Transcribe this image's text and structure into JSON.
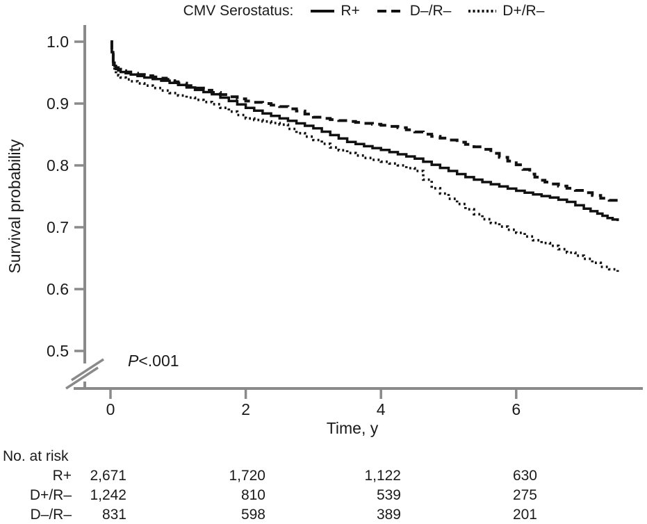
{
  "legend": {
    "title": "CMV Serostatus:",
    "items": [
      {
        "label": "R+",
        "style": "solid"
      },
      {
        "label": "D–/R–",
        "style": "dashed"
      },
      {
        "label": "D+/R–",
        "style": "dotted"
      }
    ]
  },
  "annotation": {
    "p_prefix": "P",
    "p_value": "<.001"
  },
  "chart_data": {
    "type": "line",
    "subtype": "kaplan-meier-step",
    "title": "CMV Serostatus:",
    "xlabel": "Time, y",
    "ylabel": "Survival probability",
    "xlim": [
      0,
      7.9
    ],
    "ylim": [
      0.5,
      1.0
    ],
    "y_axis_break_below": 0.5,
    "grid": false,
    "legend_position": "top",
    "p_value_annotation": "P<.001",
    "x_ticks": [
      0,
      2,
      4,
      6
    ],
    "y_ticks": [
      1.0,
      0.9,
      0.8,
      0.7,
      0.6,
      0.5
    ],
    "series": [
      {
        "name": "R+",
        "line_style": "solid",
        "points": [
          [
            0,
            1.0
          ],
          [
            0.04,
            0.966
          ],
          [
            0.08,
            0.956
          ],
          [
            0.15,
            0.951
          ],
          [
            0.3,
            0.947
          ],
          [
            0.5,
            0.942
          ],
          [
            0.75,
            0.937
          ],
          [
            1.0,
            0.93
          ],
          [
            1.25,
            0.922
          ],
          [
            1.5,
            0.915
          ],
          [
            1.75,
            0.904
          ],
          [
            2.0,
            0.893
          ],
          [
            2.25,
            0.884
          ],
          [
            2.5,
            0.876
          ],
          [
            2.75,
            0.868
          ],
          [
            3.0,
            0.86
          ],
          [
            3.25,
            0.849
          ],
          [
            3.5,
            0.838
          ],
          [
            3.75,
            0.831
          ],
          [
            4.0,
            0.825
          ],
          [
            4.25,
            0.818
          ],
          [
            4.5,
            0.811
          ],
          [
            4.75,
            0.801
          ],
          [
            5.0,
            0.791
          ],
          [
            5.25,
            0.781
          ],
          [
            5.5,
            0.773
          ],
          [
            5.75,
            0.766
          ],
          [
            6.0,
            0.759
          ],
          [
            6.25,
            0.753
          ],
          [
            6.5,
            0.748
          ],
          [
            6.75,
            0.741
          ],
          [
            7.0,
            0.73
          ],
          [
            7.2,
            0.722
          ],
          [
            7.35,
            0.715
          ],
          [
            7.5,
            0.71
          ]
        ]
      },
      {
        "name": "D–/R–",
        "line_style": "dashed",
        "points": [
          [
            0,
            1.0
          ],
          [
            0.04,
            0.968
          ],
          [
            0.08,
            0.958
          ],
          [
            0.15,
            0.953
          ],
          [
            0.3,
            0.949
          ],
          [
            0.5,
            0.945
          ],
          [
            0.75,
            0.941
          ],
          [
            0.9,
            0.937
          ],
          [
            1.0,
            0.933
          ],
          [
            1.25,
            0.925
          ],
          [
            1.5,
            0.918
          ],
          [
            1.75,
            0.911
          ],
          [
            2.0,
            0.904
          ],
          [
            2.25,
            0.9
          ],
          [
            2.5,
            0.895
          ],
          [
            2.75,
            0.888
          ],
          [
            3.0,
            0.878
          ],
          [
            3.25,
            0.874
          ],
          [
            3.5,
            0.871
          ],
          [
            3.75,
            0.868
          ],
          [
            4.0,
            0.865
          ],
          [
            4.25,
            0.861
          ],
          [
            4.5,
            0.854
          ],
          [
            4.75,
            0.847
          ],
          [
            5.0,
            0.841
          ],
          [
            5.25,
            0.834
          ],
          [
            5.5,
            0.826
          ],
          [
            5.75,
            0.813
          ],
          [
            6.0,
            0.801
          ],
          [
            6.2,
            0.786
          ],
          [
            6.35,
            0.776
          ],
          [
            6.5,
            0.77
          ],
          [
            6.75,
            0.763
          ],
          [
            7.0,
            0.756
          ],
          [
            7.25,
            0.747
          ],
          [
            7.5,
            0.74
          ]
        ]
      },
      {
        "name": "D+/R–",
        "line_style": "dotted",
        "points": [
          [
            0,
            1.0
          ],
          [
            0.04,
            0.96
          ],
          [
            0.08,
            0.949
          ],
          [
            0.15,
            0.942
          ],
          [
            0.3,
            0.936
          ],
          [
            0.5,
            0.929
          ],
          [
            0.75,
            0.921
          ],
          [
            1.0,
            0.913
          ],
          [
            1.25,
            0.906
          ],
          [
            1.5,
            0.899
          ],
          [
            1.75,
            0.887
          ],
          [
            2.0,
            0.876
          ],
          [
            2.25,
            0.871
          ],
          [
            2.5,
            0.866
          ],
          [
            2.75,
            0.852
          ],
          [
            3.0,
            0.841
          ],
          [
            3.25,
            0.829
          ],
          [
            3.5,
            0.82
          ],
          [
            3.75,
            0.812
          ],
          [
            4.0,
            0.806
          ],
          [
            4.25,
            0.8
          ],
          [
            4.5,
            0.791
          ],
          [
            4.75,
            0.763
          ],
          [
            5.0,
            0.746
          ],
          [
            5.25,
            0.729
          ],
          [
            5.5,
            0.713
          ],
          [
            5.75,
            0.701
          ],
          [
            6.0,
            0.691
          ],
          [
            6.25,
            0.679
          ],
          [
            6.5,
            0.67
          ],
          [
            6.75,
            0.659
          ],
          [
            7.0,
            0.649
          ],
          [
            7.25,
            0.636
          ],
          [
            7.5,
            0.628
          ]
        ]
      }
    ]
  },
  "risk_table": {
    "title": "No. at risk",
    "times": [
      0,
      2,
      4,
      6
    ],
    "rows": [
      {
        "label": "R+",
        "values": [
          "2,671",
          "1,720",
          "1,122",
          "630"
        ]
      },
      {
        "label": "D+/R–",
        "values": [
          "1,242",
          "810",
          "539",
          "275"
        ]
      },
      {
        "label": "D–/R–",
        "values": [
          "831",
          "598",
          "389",
          "201"
        ]
      }
    ]
  },
  "colors": {
    "axis": "#8a8a8a",
    "curve": "#111111",
    "text": "#1a1a1a"
  }
}
